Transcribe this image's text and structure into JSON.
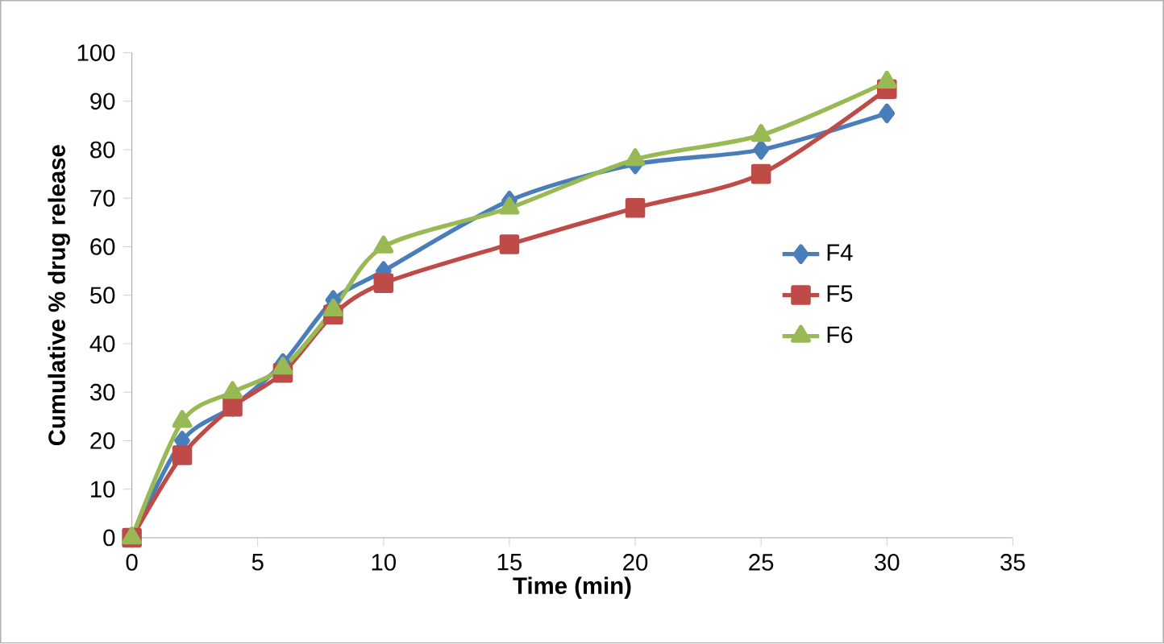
{
  "chart_data": {
    "type": "line",
    "xlabel": "Time (min)",
    "ylabel": "Cumulative % drug release",
    "x": [
      0,
      2,
      4,
      6,
      8,
      10,
      15,
      20,
      25,
      30
    ],
    "series": [
      {
        "name": "F4",
        "color": "#4a7ebb",
        "marker": "diamond",
        "values": [
          0,
          20,
          27,
          36,
          49,
          55,
          69.5,
          77,
          80,
          87.5
        ]
      },
      {
        "name": "F5",
        "color": "#be4b48",
        "marker": "square",
        "values": [
          0,
          17,
          27,
          34,
          46,
          52.5,
          60.5,
          68,
          75,
          92.5
        ]
      },
      {
        "name": "F6",
        "color": "#98b954",
        "marker": "triangle",
        "values": [
          0,
          24,
          30,
          35,
          47,
          60,
          68,
          78,
          83,
          94
        ]
      }
    ],
    "xlim": [
      0,
      35
    ],
    "xticks": [
      0,
      5,
      10,
      15,
      20,
      25,
      30,
      35
    ],
    "ylim": [
      0,
      100
    ],
    "yticks": [
      0,
      10,
      20,
      30,
      40,
      50,
      60,
      70,
      80,
      90,
      100
    ],
    "grid": false,
    "legend": "center right",
    "line_style": "solid"
  }
}
